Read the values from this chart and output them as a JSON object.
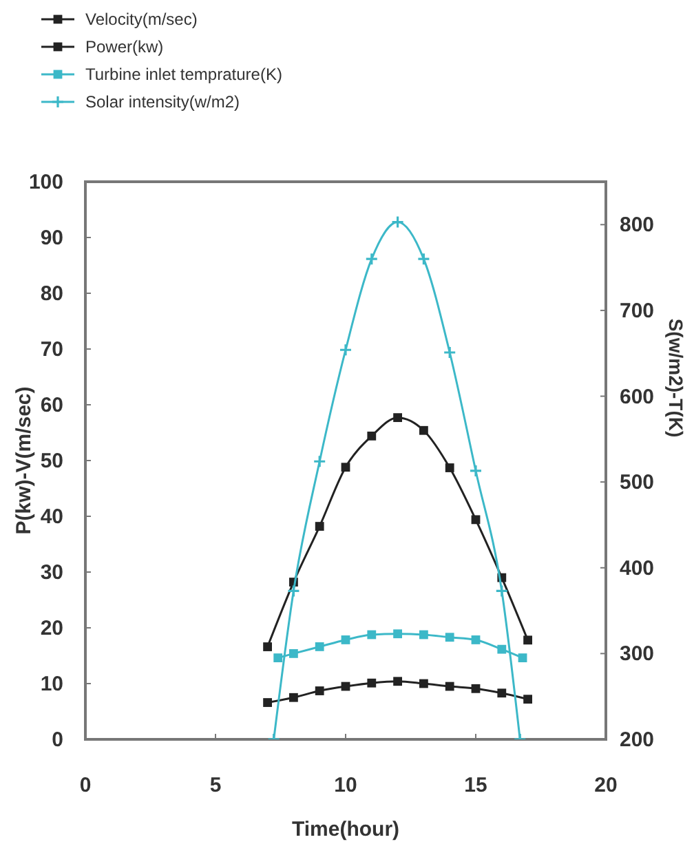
{
  "chart_data": {
    "type": "line",
    "xlabel": "Time(hour)",
    "ylabel": "P(kw)-V(m/sec)",
    "y2label": "S(w/m2)-T(K)",
    "xlim": [
      0,
      20
    ],
    "xticks": [
      0,
      5,
      10,
      15,
      20
    ],
    "ylim": [
      0,
      100
    ],
    "yticks": [
      0,
      10,
      20,
      30,
      40,
      50,
      60,
      70,
      80,
      90,
      100
    ],
    "y2lim": [
      200,
      850
    ],
    "y2ticks": [
      200,
      300,
      400,
      500,
      600,
      700,
      800
    ],
    "grid": false,
    "legend": "top left",
    "line_style": "solid",
    "series": [
      {
        "name": "Velocity(m/sec)",
        "color": "#222222",
        "marker": "square",
        "x": [
          7,
          8,
          9,
          10,
          11,
          12,
          13,
          14,
          15,
          16,
          17
        ],
        "values": [
          16.6,
          28.2,
          38.2,
          48.8,
          54.4,
          57.7,
          55.4,
          48.7,
          39.4,
          29.0,
          17.8
        ]
      },
      {
        "name": "Power(kw)",
        "color": "#222222",
        "marker": "square",
        "x": [
          7,
          8,
          9,
          10,
          11,
          12,
          13,
          14,
          15,
          16,
          17
        ],
        "values": [
          6.6,
          7.5,
          8.7,
          9.5,
          10.1,
          10.4,
          10.0,
          9.5,
          9.1,
          8.3,
          7.2
        ]
      },
      {
        "name": "Turbine inlet temprature(K)",
        "color": "#3cb8c8",
        "marker": "square",
        "axis": "y2",
        "x": [
          7.4,
          8,
          9,
          10,
          11,
          12,
          13,
          14,
          15,
          16,
          16.8
        ],
        "values": [
          295,
          300,
          308,
          316,
          322,
          323,
          322,
          319,
          316,
          305,
          295
        ]
      },
      {
        "name": "Solar intensity(w/m2)",
        "color": "#3cb8c8",
        "marker": "cross",
        "axis": "y2",
        "x": [
          7.24,
          8,
          9,
          10,
          11,
          12,
          13,
          14,
          15,
          16,
          16.7
        ],
        "values": [
          200,
          373,
          524,
          654,
          760,
          803,
          760,
          651,
          513,
          373,
          200
        ]
      }
    ]
  }
}
